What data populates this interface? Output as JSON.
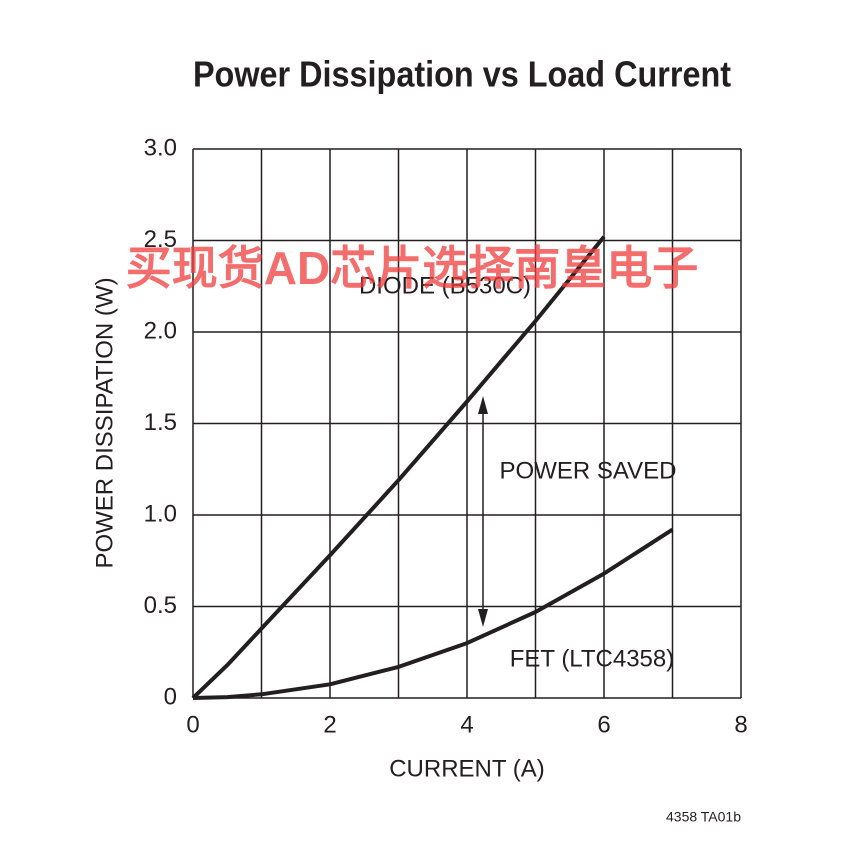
{
  "chart_data": {
    "type": "line",
    "title": "Power Dissipation vs Load Current",
    "x_label": "CURRENT (A)",
    "y_label": "POWER DISSIPATION (W)",
    "x": [
      0,
      0.5,
      1,
      2,
      3,
      4,
      5,
      6,
      7
    ],
    "series": [
      {
        "name": "DIODE (B530C)",
        "color": "#231f20",
        "values": [
          0,
          0.18,
          0.38,
          0.78,
          1.19,
          1.62,
          2.06,
          2.52,
          null
        ]
      },
      {
        "name": "FET (LTC4358)",
        "color": "#231f20",
        "values": [
          0,
          0.005,
          0.02,
          0.075,
          0.17,
          0.3,
          0.47,
          0.68,
          0.92
        ]
      }
    ],
    "annotations": [
      "POWER SAVED"
    ],
    "footer": "4358 TA01b",
    "watermark": "买现货AD芯片选择南皇电子",
    "xlim": [
      0,
      8
    ],
    "xticks": [
      0,
      2,
      4,
      6,
      8
    ],
    "xminor": [
      1,
      3,
      5,
      7
    ],
    "ylim": [
      0,
      3
    ],
    "yticks": [
      0,
      0.5,
      {
        "value": 1,
        "label": "1.0"
      },
      1.5,
      {
        "value": 2,
        "label": "2.0"
      },
      2.5,
      {
        "value": 3,
        "label": "3.0"
      }
    ],
    "grid": true
  }
}
